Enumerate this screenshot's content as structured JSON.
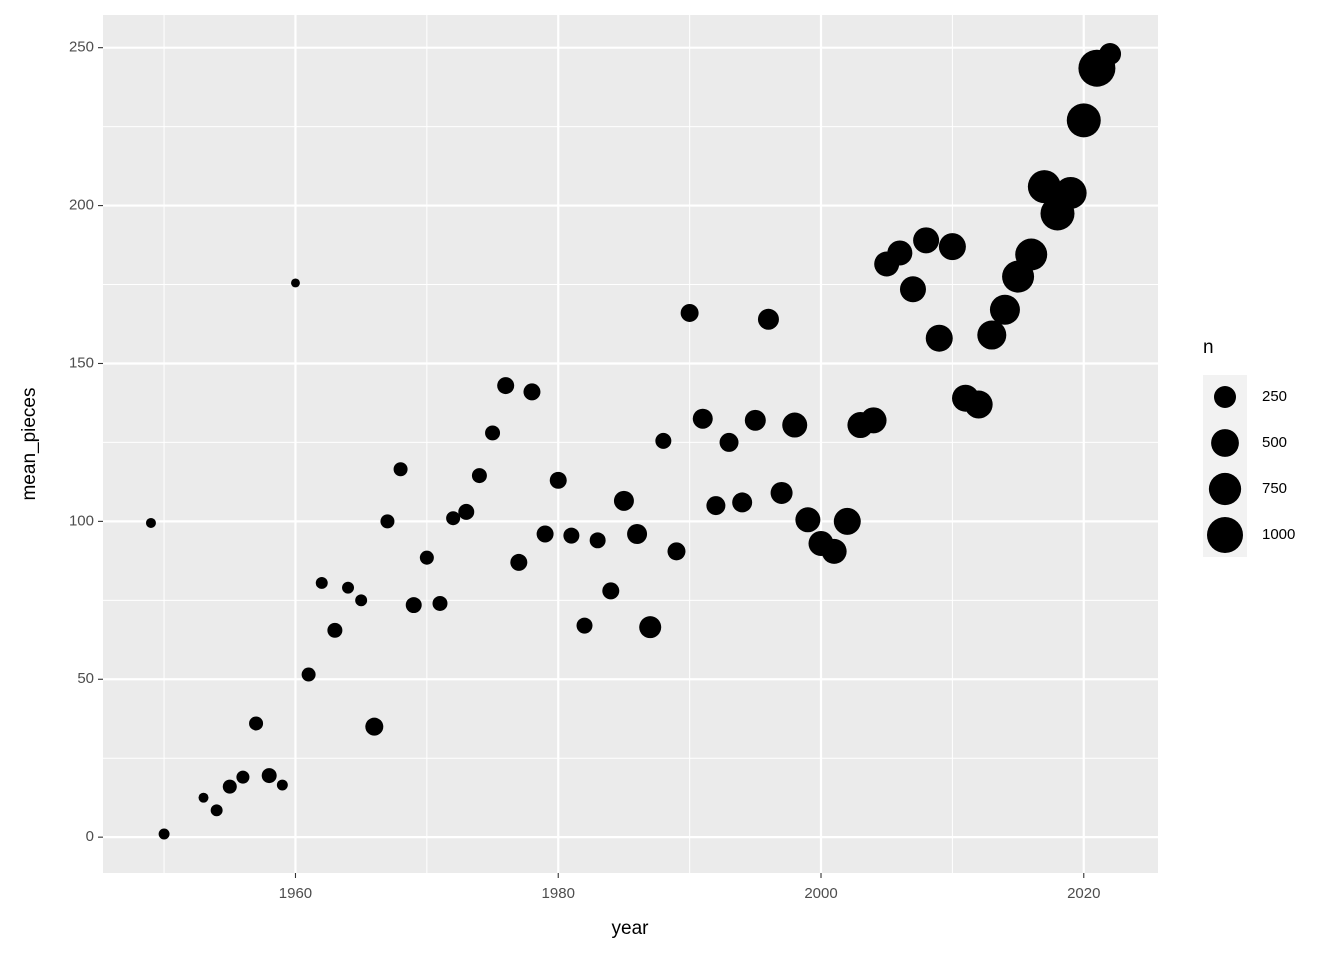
{
  "chart_data": {
    "type": "scatter",
    "xlabel": "year",
    "ylabel": "mean_pieces",
    "size_label": "n",
    "color": "#000000",
    "panel_color": "#ebebeb",
    "grid": true,
    "legend": "right",
    "x": [
      1949,
      1950,
      1953,
      1954,
      1955,
      1956,
      1957,
      1958,
      1959,
      1960,
      1961,
      1962,
      1963,
      1964,
      1965,
      1966,
      1967,
      1968,
      1969,
      1970,
      1971,
      1972,
      1973,
      1974,
      1975,
      1976,
      1977,
      1978,
      1979,
      1980,
      1981,
      1982,
      1983,
      1984,
      1985,
      1986,
      1987,
      1988,
      1989,
      1990,
      1991,
      1992,
      1993,
      1994,
      1995,
      1996,
      1997,
      1998,
      1999,
      2000,
      2001,
      2002,
      2003,
      2004,
      2005,
      2006,
      2007,
      2008,
      2009,
      2010,
      2011,
      2012,
      2013,
      2014,
      2015,
      2016,
      2017,
      2018,
      2019,
      2020,
      2021,
      2022
    ],
    "values": [
      99.5,
      1,
      12.5,
      8.5,
      16,
      19,
      36,
      19.5,
      16.5,
      175.5,
      51.5,
      80.5,
      65.5,
      79,
      75,
      35,
      100,
      116.5,
      73.5,
      88.5,
      74,
      101,
      103,
      114.5,
      128,
      143,
      87,
      141,
      96,
      113,
      95.5,
      67,
      94,
      78,
      106.5,
      96,
      66.5,
      125.5,
      90.5,
      166,
      132.5,
      105,
      125,
      106,
      132,
      164,
      109,
      130.5,
      100.5,
      93,
      90.5,
      100,
      130.5,
      132,
      181.5,
      185,
      173.5,
      189,
      158,
      187,
      139,
      137,
      159,
      167,
      177.5,
      184.5,
      206,
      197.5,
      204,
      227,
      243.5,
      248
    ],
    "sizes": [
      5,
      11,
      5,
      20,
      46,
      32,
      46,
      62,
      11,
      1,
      46,
      20,
      62,
      20,
      20,
      127,
      46,
      46,
      81,
      46,
      62,
      46,
      81,
      62,
      62,
      103,
      103,
      103,
      103,
      103,
      81,
      81,
      81,
      103,
      183,
      183,
      250,
      81,
      127,
      127,
      183,
      154,
      154,
      183,
      215,
      215,
      250,
      368,
      368,
      368,
      368,
      460,
      413,
      413,
      368,
      368,
      413,
      413,
      460,
      460,
      460,
      510,
      562,
      617,
      734,
      734,
      796,
      861,
      734,
      861,
      1071,
      250
    ],
    "xlim": [
      1945.35,
      2025.65
    ],
    "xticks": [
      1960,
      1980,
      2000,
      2020
    ],
    "ylim": [
      -11.35,
      260.35
    ],
    "yticks": [
      0,
      50,
      100,
      150,
      200,
      250
    ],
    "size_ticks": [
      250,
      500,
      750,
      1000
    ]
  }
}
